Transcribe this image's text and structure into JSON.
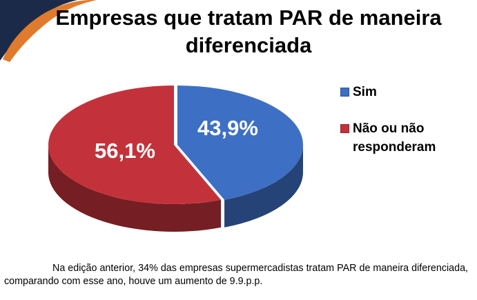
{
  "title_lines": [
    "Empresas que tratam PAR de maneira",
    "diferenciada"
  ],
  "chart_data": {
    "type": "pie",
    "title": "Empresas que tratam PAR de maneira diferenciada",
    "categories": [
      "Sim",
      "Não ou não responderam"
    ],
    "values": [
      43.9,
      56.1
    ],
    "labels": [
      "43,9%",
      "56,1%"
    ],
    "colors": [
      "#3d6fc4",
      "#c3323a"
    ],
    "style": "3d-exploded",
    "legend_position": "right"
  },
  "legend": {
    "items": [
      {
        "lines": [
          "Sim"
        ],
        "color": "#3d6fc4"
      },
      {
        "lines": [
          "Não ou não",
          "responderam"
        ],
        "color": "#c3323a"
      }
    ]
  },
  "note": "Na edição anterior, 34%  das empresas supermercadistas tratam PAR de maneira diferenciada, comparando com esse ano, houve um aumento de 9.9.p.p.",
  "decoration_colors": {
    "navy": "#1b2a48",
    "orange": "#e07a2c"
  }
}
